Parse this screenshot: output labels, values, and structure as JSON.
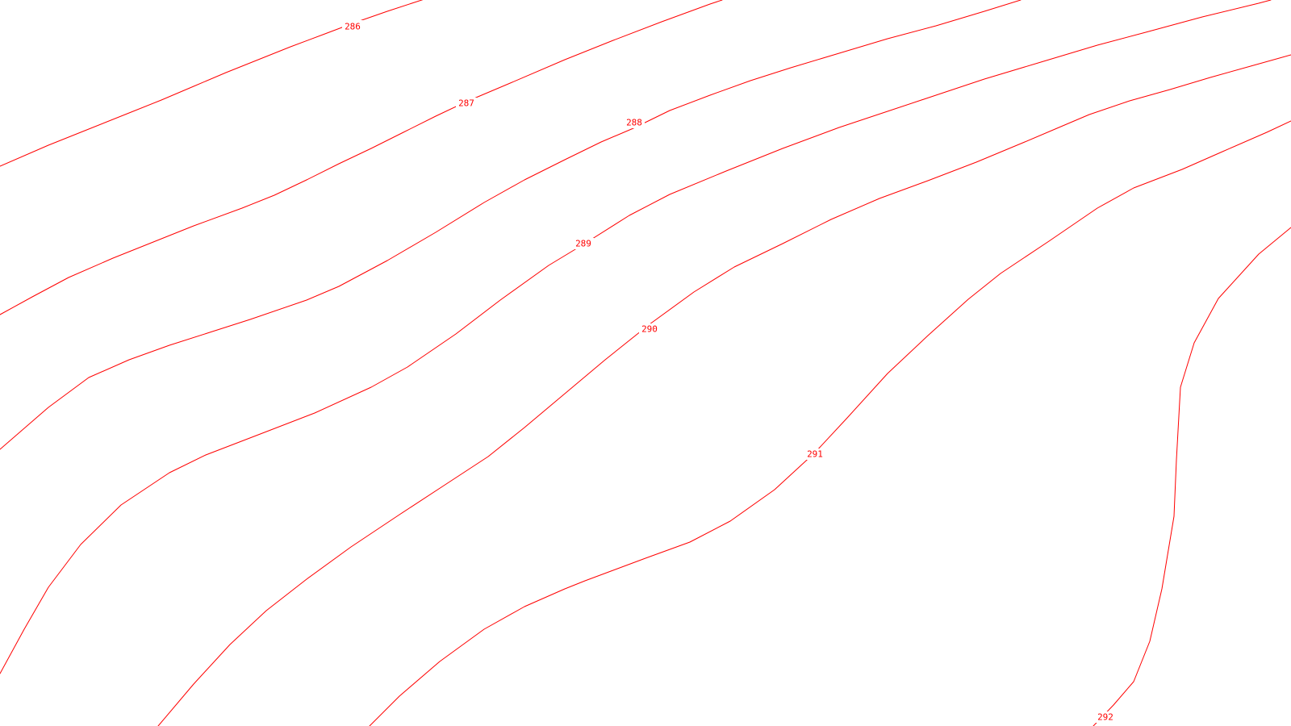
{
  "map": {
    "type": "contour-map",
    "background_color": "#ffffff",
    "line_color": "#ff0000",
    "label_color": "#ff0000",
    "contours": [
      {
        "level": "286"
      },
      {
        "level": "287"
      },
      {
        "level": "288"
      },
      {
        "level": "289"
      },
      {
        "level": "290"
      },
      {
        "level": "291"
      },
      {
        "level": "292"
      }
    ]
  }
}
